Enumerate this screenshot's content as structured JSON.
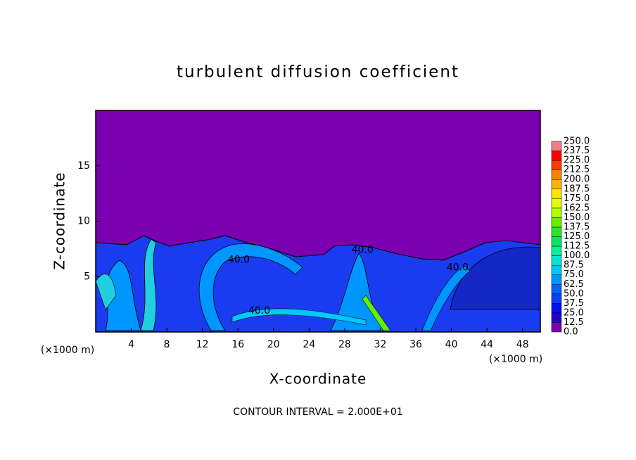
{
  "chart_data": {
    "type": "contour",
    "title": "turbulent diffusion coefficient",
    "xlabel": "X-coordinate",
    "ylabel": "Z-coordinate",
    "x_unit_left": "(×1000 m)",
    "x_unit_right": "(×1000 m)",
    "footnote": "CONTOUR INTERVAL = 2.000E+01",
    "xlim": [
      0,
      50
    ],
    "xticks": [
      4,
      8,
      12,
      16,
      20,
      24,
      28,
      32,
      36,
      40,
      44,
      48
    ],
    "ylim": [
      0,
      20
    ],
    "yticks": [
      5,
      10,
      15
    ],
    "levels": [
      {
        "value": 0,
        "label": "0.0"
      },
      12.5,
      {
        "value": 25,
        "label": "25.0"
      },
      37.5,
      {
        "value": 50,
        "label": "50.0"
      },
      62.5,
      {
        "value": 75,
        "label": "75.0"
      },
      87.5,
      {
        "value": 100,
        "label": "100.0"
      },
      112.5,
      {
        "value": 125,
        "label": "125.0"
      },
      137.5,
      {
        "value": 150,
        "label": "150.0"
      },
      162.5,
      {
        "value": 175,
        "label": "175.0"
      },
      187.5,
      {
        "value": 200,
        "label": "200.0"
      },
      212.5,
      {
        "value": 225,
        "label": "225.0"
      },
      237.5,
      {
        "value": 250,
        "label": "250.0"
      }
    ],
    "colors": [
      "#7a00b0",
      "#2a00c8",
      "#0010f0",
      "#0a3cff",
      "#0064ff",
      "#0096ff",
      "#00c8ff",
      "#00e6d2",
      "#00f0a0",
      "#00e664",
      "#28e628",
      "#64f000",
      "#b4ff00",
      "#e6ff00",
      "#ffe600",
      "#ffb400",
      "#ff8200",
      "#ff3c00",
      "#ff0000",
      "#f08080"
    ],
    "contour_labels": [
      {
        "text": "40.0",
        "x": 16.1,
        "z": 6.5
      },
      {
        "text": "40.0",
        "x": 18.4,
        "z": 1.9
      },
      {
        "text": "40.0",
        "x": 30.0,
        "z": 7.4
      },
      {
        "text": "40.0",
        "x": 40.7,
        "z": 5.8
      }
    ]
  }
}
